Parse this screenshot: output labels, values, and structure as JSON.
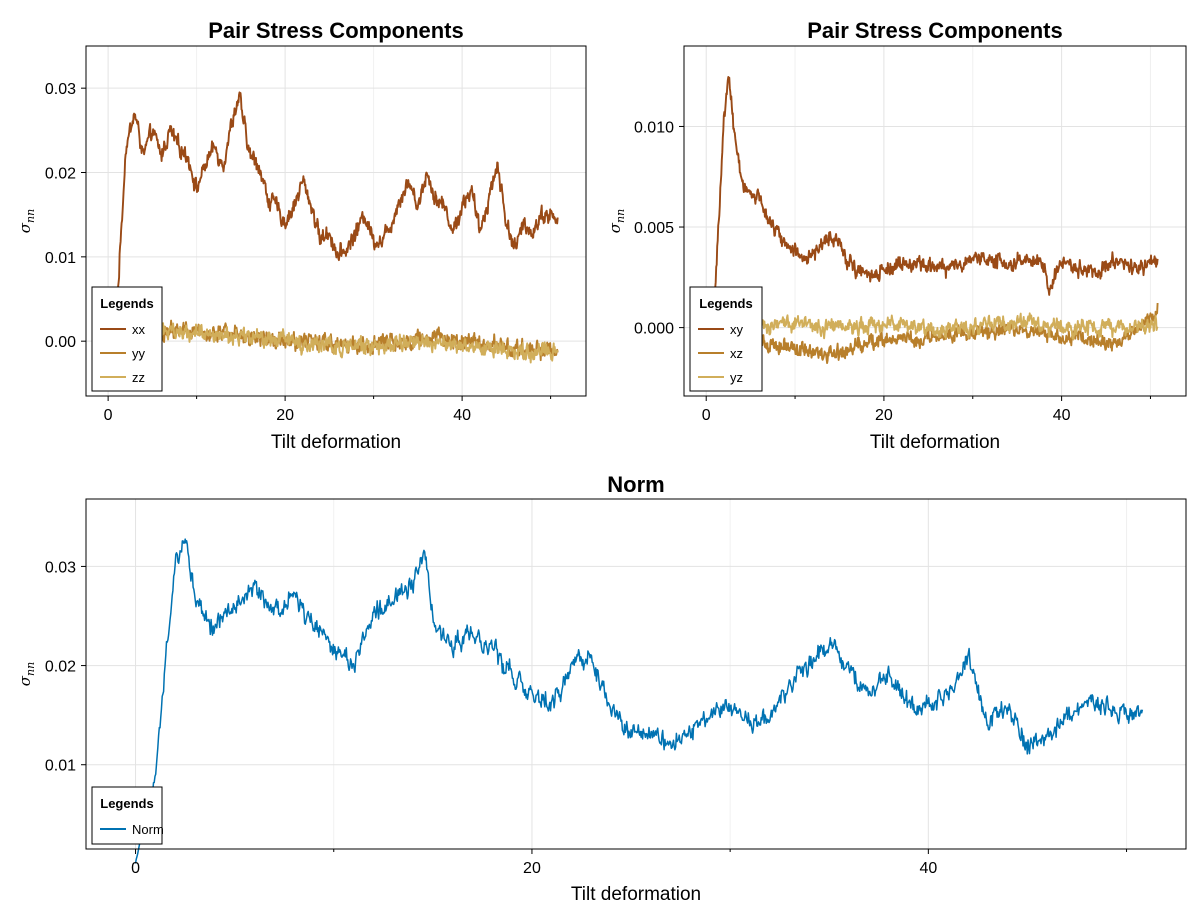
{
  "chart_data": [
    {
      "type": "line",
      "title": "Pair Stress Components",
      "xlabel": "Tilt deformation",
      "ylabel": "σ_nn",
      "xlim": [
        -2.5,
        54
      ],
      "ylim": [
        -0.0065,
        0.035
      ],
      "xticks": [
        0,
        20,
        40
      ],
      "xtick_labels": [
        "0",
        "20",
        "40"
      ],
      "yticks": [
        0.0,
        0.01,
        0.02,
        0.03
      ],
      "ytick_labels": [
        "0.00",
        "0.01",
        "0.02",
        "0.03"
      ],
      "grid": true,
      "legend": {
        "title": "Legends",
        "placement": "bottom-left"
      },
      "series": [
        {
          "name": "xx",
          "color": "#9A4A16",
          "x": [
            0,
            1,
            2,
            3,
            4,
            5,
            6,
            7,
            8,
            9,
            10,
            11,
            12,
            13,
            14,
            14.8,
            16,
            17,
            18,
            19,
            20,
            21,
            22,
            23,
            24,
            25,
            26,
            27,
            28,
            29,
            30,
            31,
            32,
            33,
            34,
            35,
            36,
            37,
            38,
            39,
            40,
            41,
            42,
            43,
            44,
            45,
            46,
            47,
            48,
            49,
            50,
            50.8
          ],
          "y": [
            0.0,
            0.004,
            0.023,
            0.027,
            0.022,
            0.025,
            0.022,
            0.025,
            0.023,
            0.022,
            0.018,
            0.021,
            0.023,
            0.021,
            0.026,
            0.029,
            0.022,
            0.021,
            0.017,
            0.016,
            0.014,
            0.016,
            0.019,
            0.016,
            0.012,
            0.013,
            0.01,
            0.011,
            0.013,
            0.015,
            0.012,
            0.012,
            0.014,
            0.017,
            0.019,
            0.016,
            0.02,
            0.017,
            0.016,
            0.013,
            0.016,
            0.018,
            0.013,
            0.017,
            0.021,
            0.014,
            0.011,
            0.014,
            0.013,
            0.015,
            0.015,
            0.014
          ]
        },
        {
          "name": "yy",
          "color": "#B87F2B",
          "x": [
            0,
            1,
            2,
            3,
            5,
            8,
            11,
            14,
            17,
            20,
            23,
            26,
            29,
            32,
            35,
            38,
            41,
            44,
            47,
            50,
            50.8
          ],
          "y": [
            0.0,
            0.001,
            0.0012,
            0.0015,
            0.0012,
            0.0013,
            0.001,
            0.0009,
            0.0005,
            0.0002,
            0.0,
            -0.0005,
            -0.0004,
            -0.0001,
            0.0003,
            0.0001,
            -0.0002,
            -0.0004,
            -0.0011,
            -0.0009,
            -0.001
          ]
        },
        {
          "name": "zz",
          "color": "#D1AE5A",
          "x": [
            0,
            1,
            2,
            3,
            5,
            8,
            11,
            14,
            17,
            20,
            23,
            26,
            29,
            32,
            35,
            38,
            41,
            44,
            47,
            50,
            50.8
          ],
          "y": [
            0.0,
            0.001,
            0.0014,
            0.0016,
            0.0013,
            0.0011,
            0.0009,
            0.0007,
            0.0003,
            0.0001,
            -0.0003,
            -0.0006,
            -0.0006,
            -0.0004,
            -0.0002,
            -0.0004,
            -0.0007,
            -0.0009,
            -0.0015,
            -0.0013,
            -0.0014
          ]
        }
      ]
    },
    {
      "type": "line",
      "title": "Pair Stress Components",
      "xlabel": "Tilt deformation",
      "ylabel": "σ_nn",
      "xlim": [
        -2.5,
        54
      ],
      "ylim": [
        -0.0034,
        0.014
      ],
      "xticks": [
        0,
        20,
        40
      ],
      "xtick_labels": [
        "0",
        "20",
        "40"
      ],
      "yticks": [
        0.0,
        0.005,
        0.01
      ],
      "ytick_labels": [
        "0.000",
        "0.005",
        "0.010"
      ],
      "grid": true,
      "legend": {
        "title": "Legends",
        "placement": "bottom-left"
      },
      "series": [
        {
          "name": "xy",
          "color": "#9A4A16",
          "x": [
            0,
            0.5,
            1,
            1.5,
            2,
            2.5,
            3,
            3.5,
            4,
            4.5,
            5,
            5.5,
            6,
            7,
            8,
            9,
            10,
            11,
            12,
            13,
            14,
            15,
            16,
            17,
            18,
            19,
            20,
            22,
            24,
            26,
            28,
            30,
            32,
            34,
            36,
            38,
            38.5,
            40,
            42,
            44,
            46,
            48,
            50,
            50.8
          ],
          "y": [
            0.0,
            0.0005,
            0.002,
            0.006,
            0.0105,
            0.0125,
            0.0105,
            0.0085,
            0.0075,
            0.0068,
            0.0066,
            0.0063,
            0.0066,
            0.0055,
            0.0047,
            0.0041,
            0.0039,
            0.0035,
            0.0036,
            0.0041,
            0.0047,
            0.0043,
            0.0033,
            0.0029,
            0.0027,
            0.0026,
            0.0029,
            0.0032,
            0.0031,
            0.0029,
            0.0031,
            0.0034,
            0.0035,
            0.0031,
            0.0034,
            0.0031,
            0.0018,
            0.0033,
            0.0029,
            0.0029,
            0.0033,
            0.0029,
            0.0033,
            0.0034
          ]
        },
        {
          "name": "xz",
          "color": "#B87F2B",
          "x": [
            0,
            1,
            2,
            3,
            4,
            5,
            6,
            8,
            10,
            12,
            14,
            16,
            18,
            20,
            22,
            24,
            26,
            28,
            30,
            32,
            34,
            36,
            38,
            40,
            42,
            44,
            46,
            48,
            50,
            50.8
          ],
          "y": [
            0.0,
            0.0005,
            0.0014,
            0.001,
            0.0003,
            0.0,
            -0.0006,
            -0.0009,
            -0.0011,
            -0.0012,
            -0.0013,
            -0.0011,
            -0.0008,
            -0.0006,
            -0.0004,
            -0.0006,
            -0.0005,
            -0.0003,
            -0.0002,
            -0.0002,
            0.0,
            -0.0002,
            -0.0003,
            -0.0005,
            -0.0004,
            -0.0007,
            -0.0009,
            -0.0002,
            0.0004,
            0.001
          ]
        },
        {
          "name": "yz",
          "color": "#D1AE5A",
          "x": [
            0,
            1,
            2,
            3,
            4,
            5,
            6,
            8,
            10,
            12,
            14,
            16,
            18,
            20,
            22,
            24,
            26,
            28,
            30,
            32,
            34,
            36,
            38,
            40,
            42,
            44,
            46,
            48,
            50,
            50.8
          ],
          "y": [
            0.0,
            0.0003,
            0.0006,
            0.0004,
            0.0002,
            0.0,
            0.0001,
            0.0002,
            0.0002,
            0.0001,
            0.0,
            0.0,
            0.0,
            0.0001,
            0.0002,
            0.0001,
            0.0,
            0.0,
            0.0,
            0.0002,
            0.0003,
            0.0002,
            0.0001,
            0.0,
            0.0,
            0.0,
            0.0,
            0.0001,
            0.0001,
            0.0002
          ]
        }
      ]
    },
    {
      "type": "line",
      "title": "Norm",
      "xlabel": "Tilt deformation",
      "ylabel": "σ_nn",
      "xlim": [
        -2.5,
        53
      ],
      "ylim": [
        0.0015,
        0.0368
      ],
      "xticks": [
        0,
        20,
        40
      ],
      "xtick_labels": [
        "0",
        "20",
        "40"
      ],
      "yticks": [
        0.01,
        0.02,
        0.03
      ],
      "ytick_labels": [
        "0.01",
        "0.02",
        "0.03"
      ],
      "grid": true,
      "legend": {
        "title": "Legends",
        "placement": "bottom-left"
      },
      "series": [
        {
          "name": "Norm",
          "color": "#0072B2",
          "x": [
            0,
            0.5,
            1,
            1.5,
            2,
            2.5,
            3,
            3.5,
            4,
            5,
            6,
            7,
            8,
            9,
            10,
            11,
            12,
            13,
            14,
            14.6,
            15,
            16,
            17,
            18,
            19,
            20,
            21,
            22,
            23,
            24,
            25,
            26,
            27,
            28,
            29,
            30,
            31,
            32,
            33,
            34,
            35,
            36,
            37,
            38,
            39,
            40,
            41,
            42,
            43,
            44,
            45,
            46,
            47,
            48,
            49,
            50,
            50.8
          ],
          "y": [
            0.0,
            0.005,
            0.009,
            0.02,
            0.03,
            0.033,
            0.027,
            0.025,
            0.024,
            0.026,
            0.028,
            0.025,
            0.027,
            0.024,
            0.022,
            0.02,
            0.025,
            0.027,
            0.028,
            0.032,
            0.024,
            0.022,
            0.023,
            0.022,
            0.019,
            0.017,
            0.016,
            0.02,
            0.021,
            0.016,
            0.013,
            0.013,
            0.012,
            0.013,
            0.015,
            0.016,
            0.014,
            0.015,
            0.018,
            0.02,
            0.022,
            0.02,
            0.017,
            0.019,
            0.016,
            0.016,
            0.017,
            0.021,
            0.014,
            0.016,
            0.012,
            0.013,
            0.015,
            0.016,
            0.016,
            0.015,
            0.015
          ]
        }
      ]
    }
  ]
}
